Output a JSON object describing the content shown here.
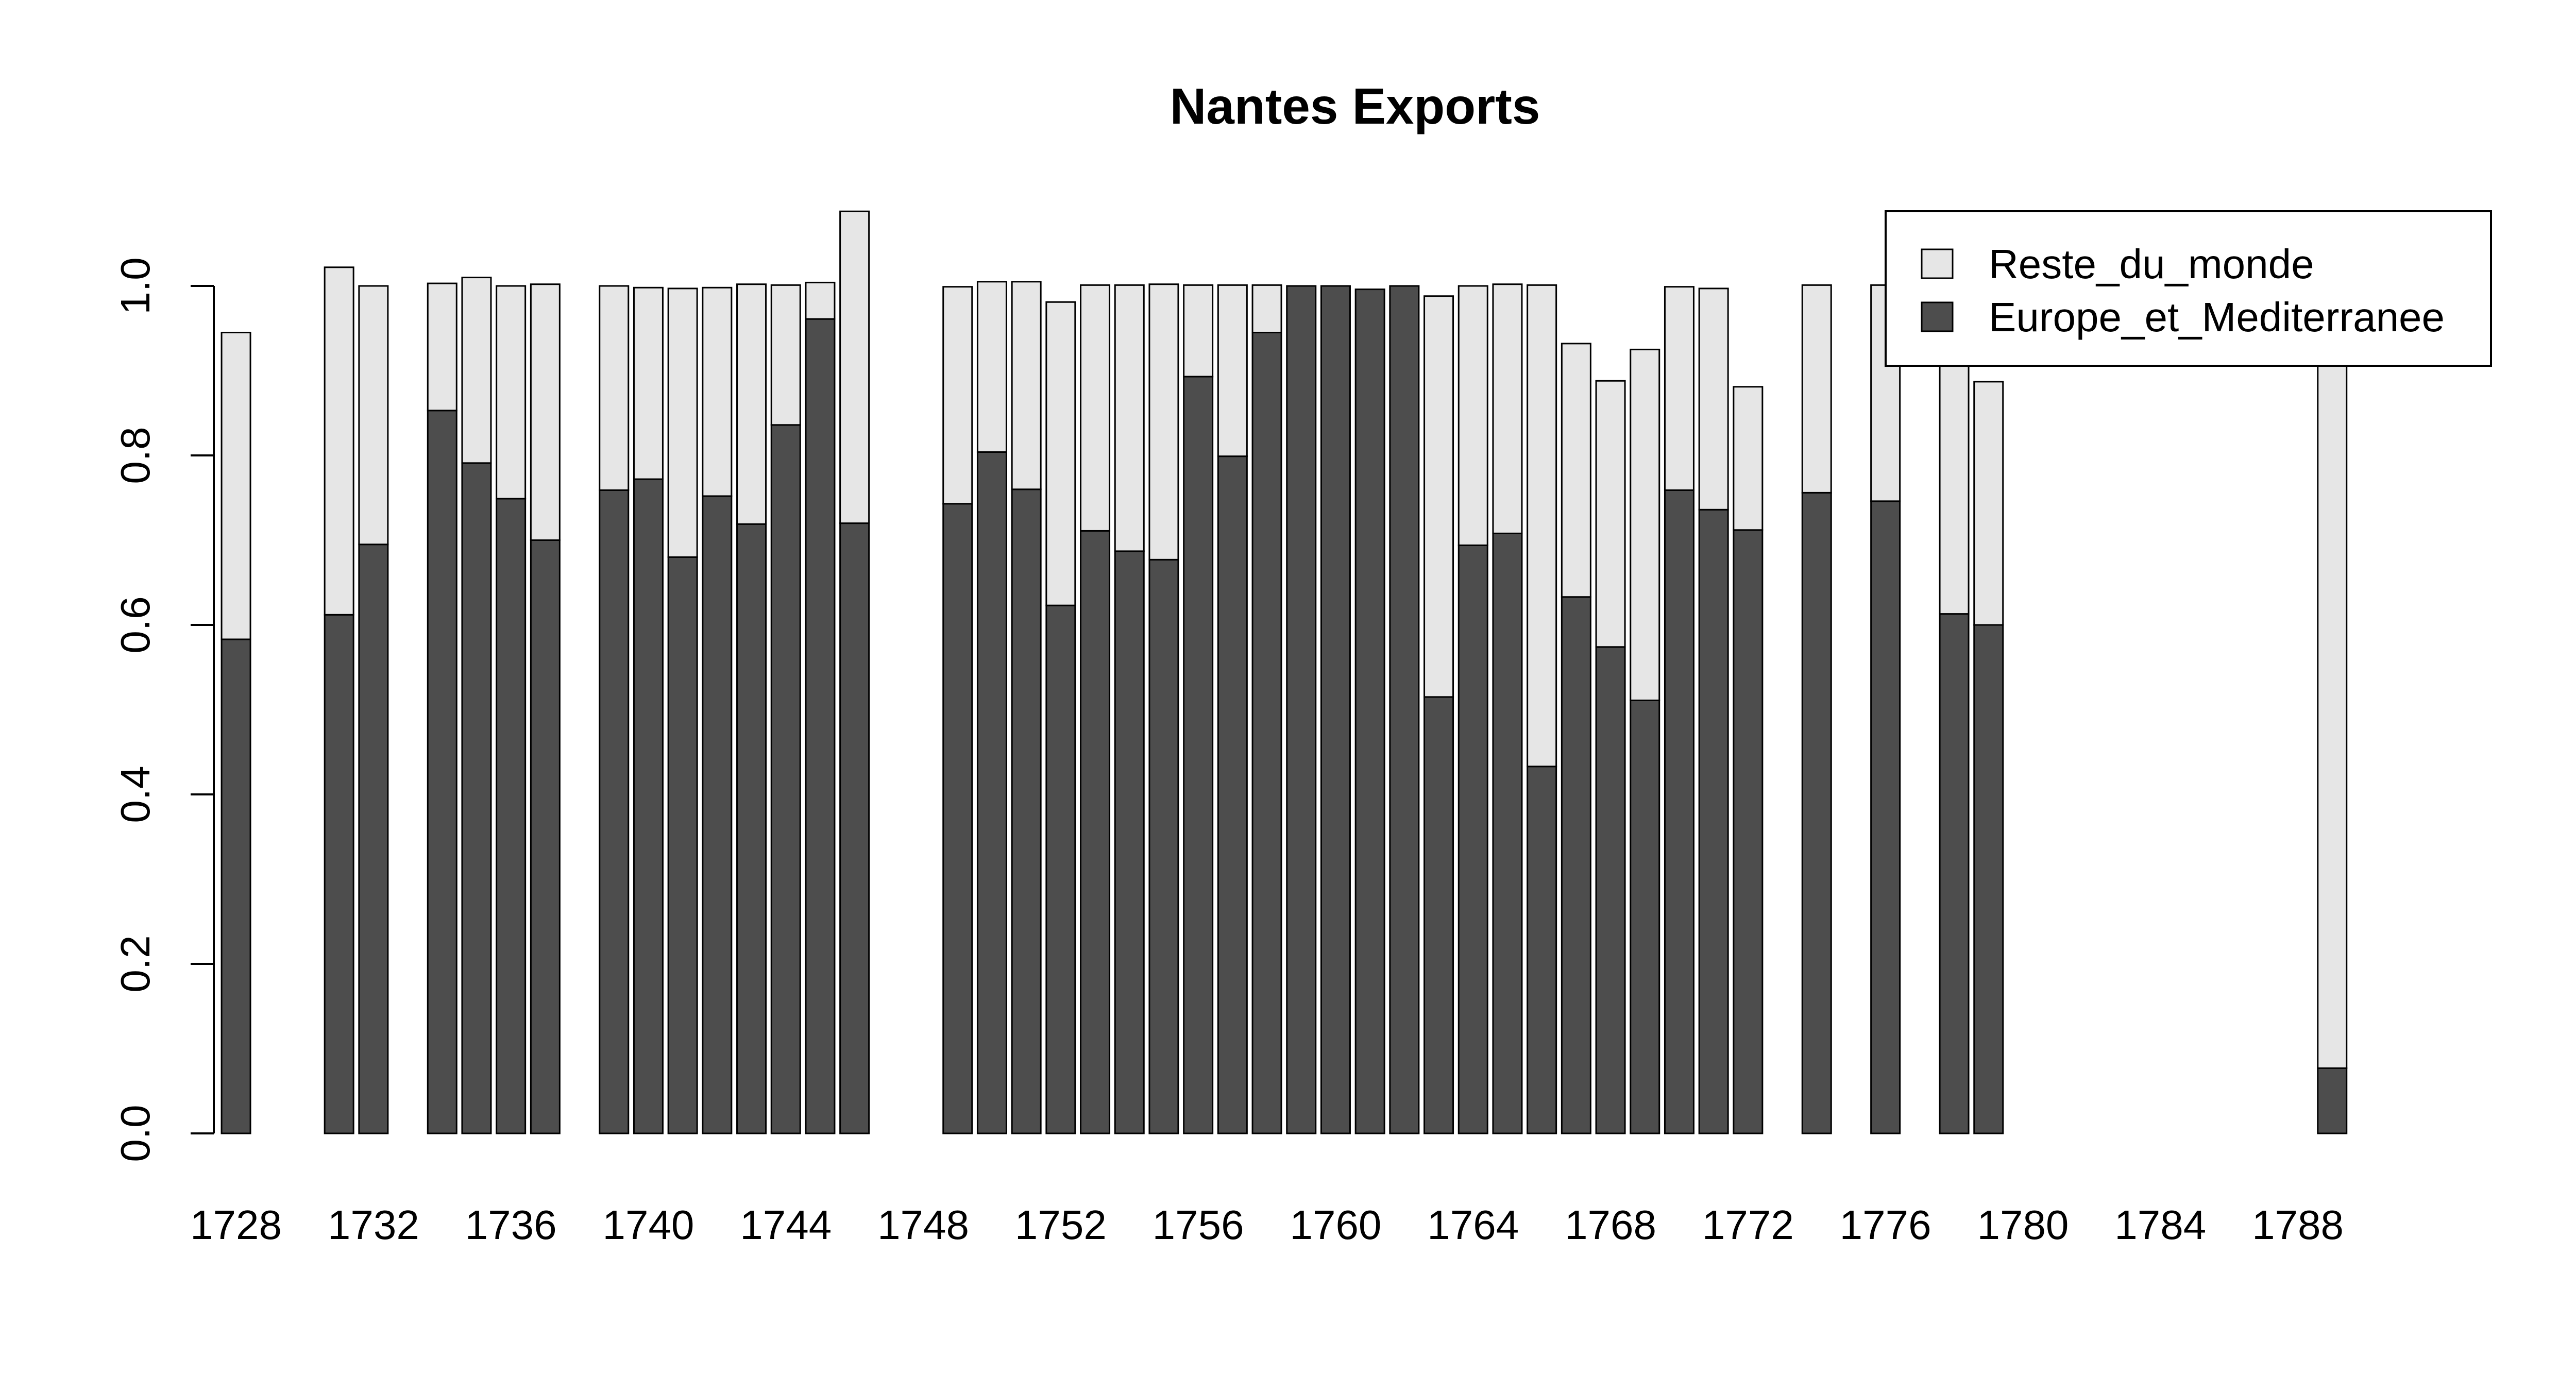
{
  "chart_data": {
    "type": "bar",
    "stacked": true,
    "title": "Nantes Exports",
    "xlabel": "",
    "ylabel": "",
    "ylim": [
      0,
      1.0
    ],
    "yticks": [
      "0.0",
      "0.2",
      "0.4",
      "0.6",
      "0.8",
      "1.0"
    ],
    "xlim": [
      1727,
      1789
    ],
    "xticks": [
      "1728",
      "1732",
      "1736",
      "1740",
      "1744",
      "1748",
      "1752",
      "1756",
      "1760",
      "1764",
      "1768",
      "1772",
      "1776",
      "1780",
      "1784",
      "1788"
    ],
    "grid": false,
    "legend_position": "top-right",
    "series": [
      {
        "name": "Europe_et_Mediterranee",
        "color": "#4d4d4d",
        "x": [
          1728,
          1731,
          1732,
          1734,
          1735,
          1736,
          1737,
          1739,
          1740,
          1741,
          1742,
          1743,
          1744,
          1745,
          1746,
          1749,
          1750,
          1751,
          1752,
          1753,
          1754,
          1755,
          1756,
          1757,
          1758,
          1759,
          1760,
          1761,
          1762,
          1763,
          1764,
          1765,
          1766,
          1767,
          1768,
          1769,
          1770,
          1771,
          1772,
          1774,
          1776,
          1778,
          1779,
          1789
        ],
        "values": [
          0.583,
          0.612,
          0.695,
          0.853,
          0.791,
          0.749,
          0.7,
          0.759,
          0.772,
          0.68,
          0.752,
          0.719,
          0.836,
          0.961,
          0.72,
          0.743,
          0.804,
          0.76,
          0.623,
          0.711,
          0.687,
          0.677,
          0.893,
          0.799,
          0.945,
          1.0,
          1.0,
          0.996,
          1.0,
          0.515,
          0.694,
          0.708,
          0.433,
          0.633,
          0.574,
          0.511,
          0.759,
          0.736,
          0.712,
          0.756,
          0.746,
          0.613,
          0.6,
          0.077
        ]
      },
      {
        "name": "Reste_du_monde",
        "color": "#e6e6e6",
        "x": [
          1728,
          1731,
          1732,
          1734,
          1735,
          1736,
          1737,
          1739,
          1740,
          1741,
          1742,
          1743,
          1744,
          1745,
          1746,
          1749,
          1750,
          1751,
          1752,
          1753,
          1754,
          1755,
          1756,
          1757,
          1758,
          1759,
          1760,
          1761,
          1762,
          1763,
          1764,
          1765,
          1766,
          1767,
          1768,
          1769,
          1770,
          1771,
          1772,
          1774,
          1776,
          1778,
          1779,
          1789
        ],
        "values": [
          0.362,
          0.41,
          0.305,
          0.15,
          0.219,
          0.251,
          0.302,
          0.241,
          0.226,
          0.317,
          0.246,
          0.283,
          0.165,
          0.043,
          0.368,
          0.256,
          0.201,
          0.245,
          0.358,
          0.29,
          0.314,
          0.325,
          0.108,
          0.202,
          0.056,
          0.0,
          0.0,
          0.0,
          0.0,
          0.473,
          0.306,
          0.294,
          0.568,
          0.299,
          0.314,
          0.414,
          0.24,
          0.261,
          0.169,
          0.245,
          0.255,
          0.388,
          0.287,
          0.923
        ]
      }
    ]
  }
}
